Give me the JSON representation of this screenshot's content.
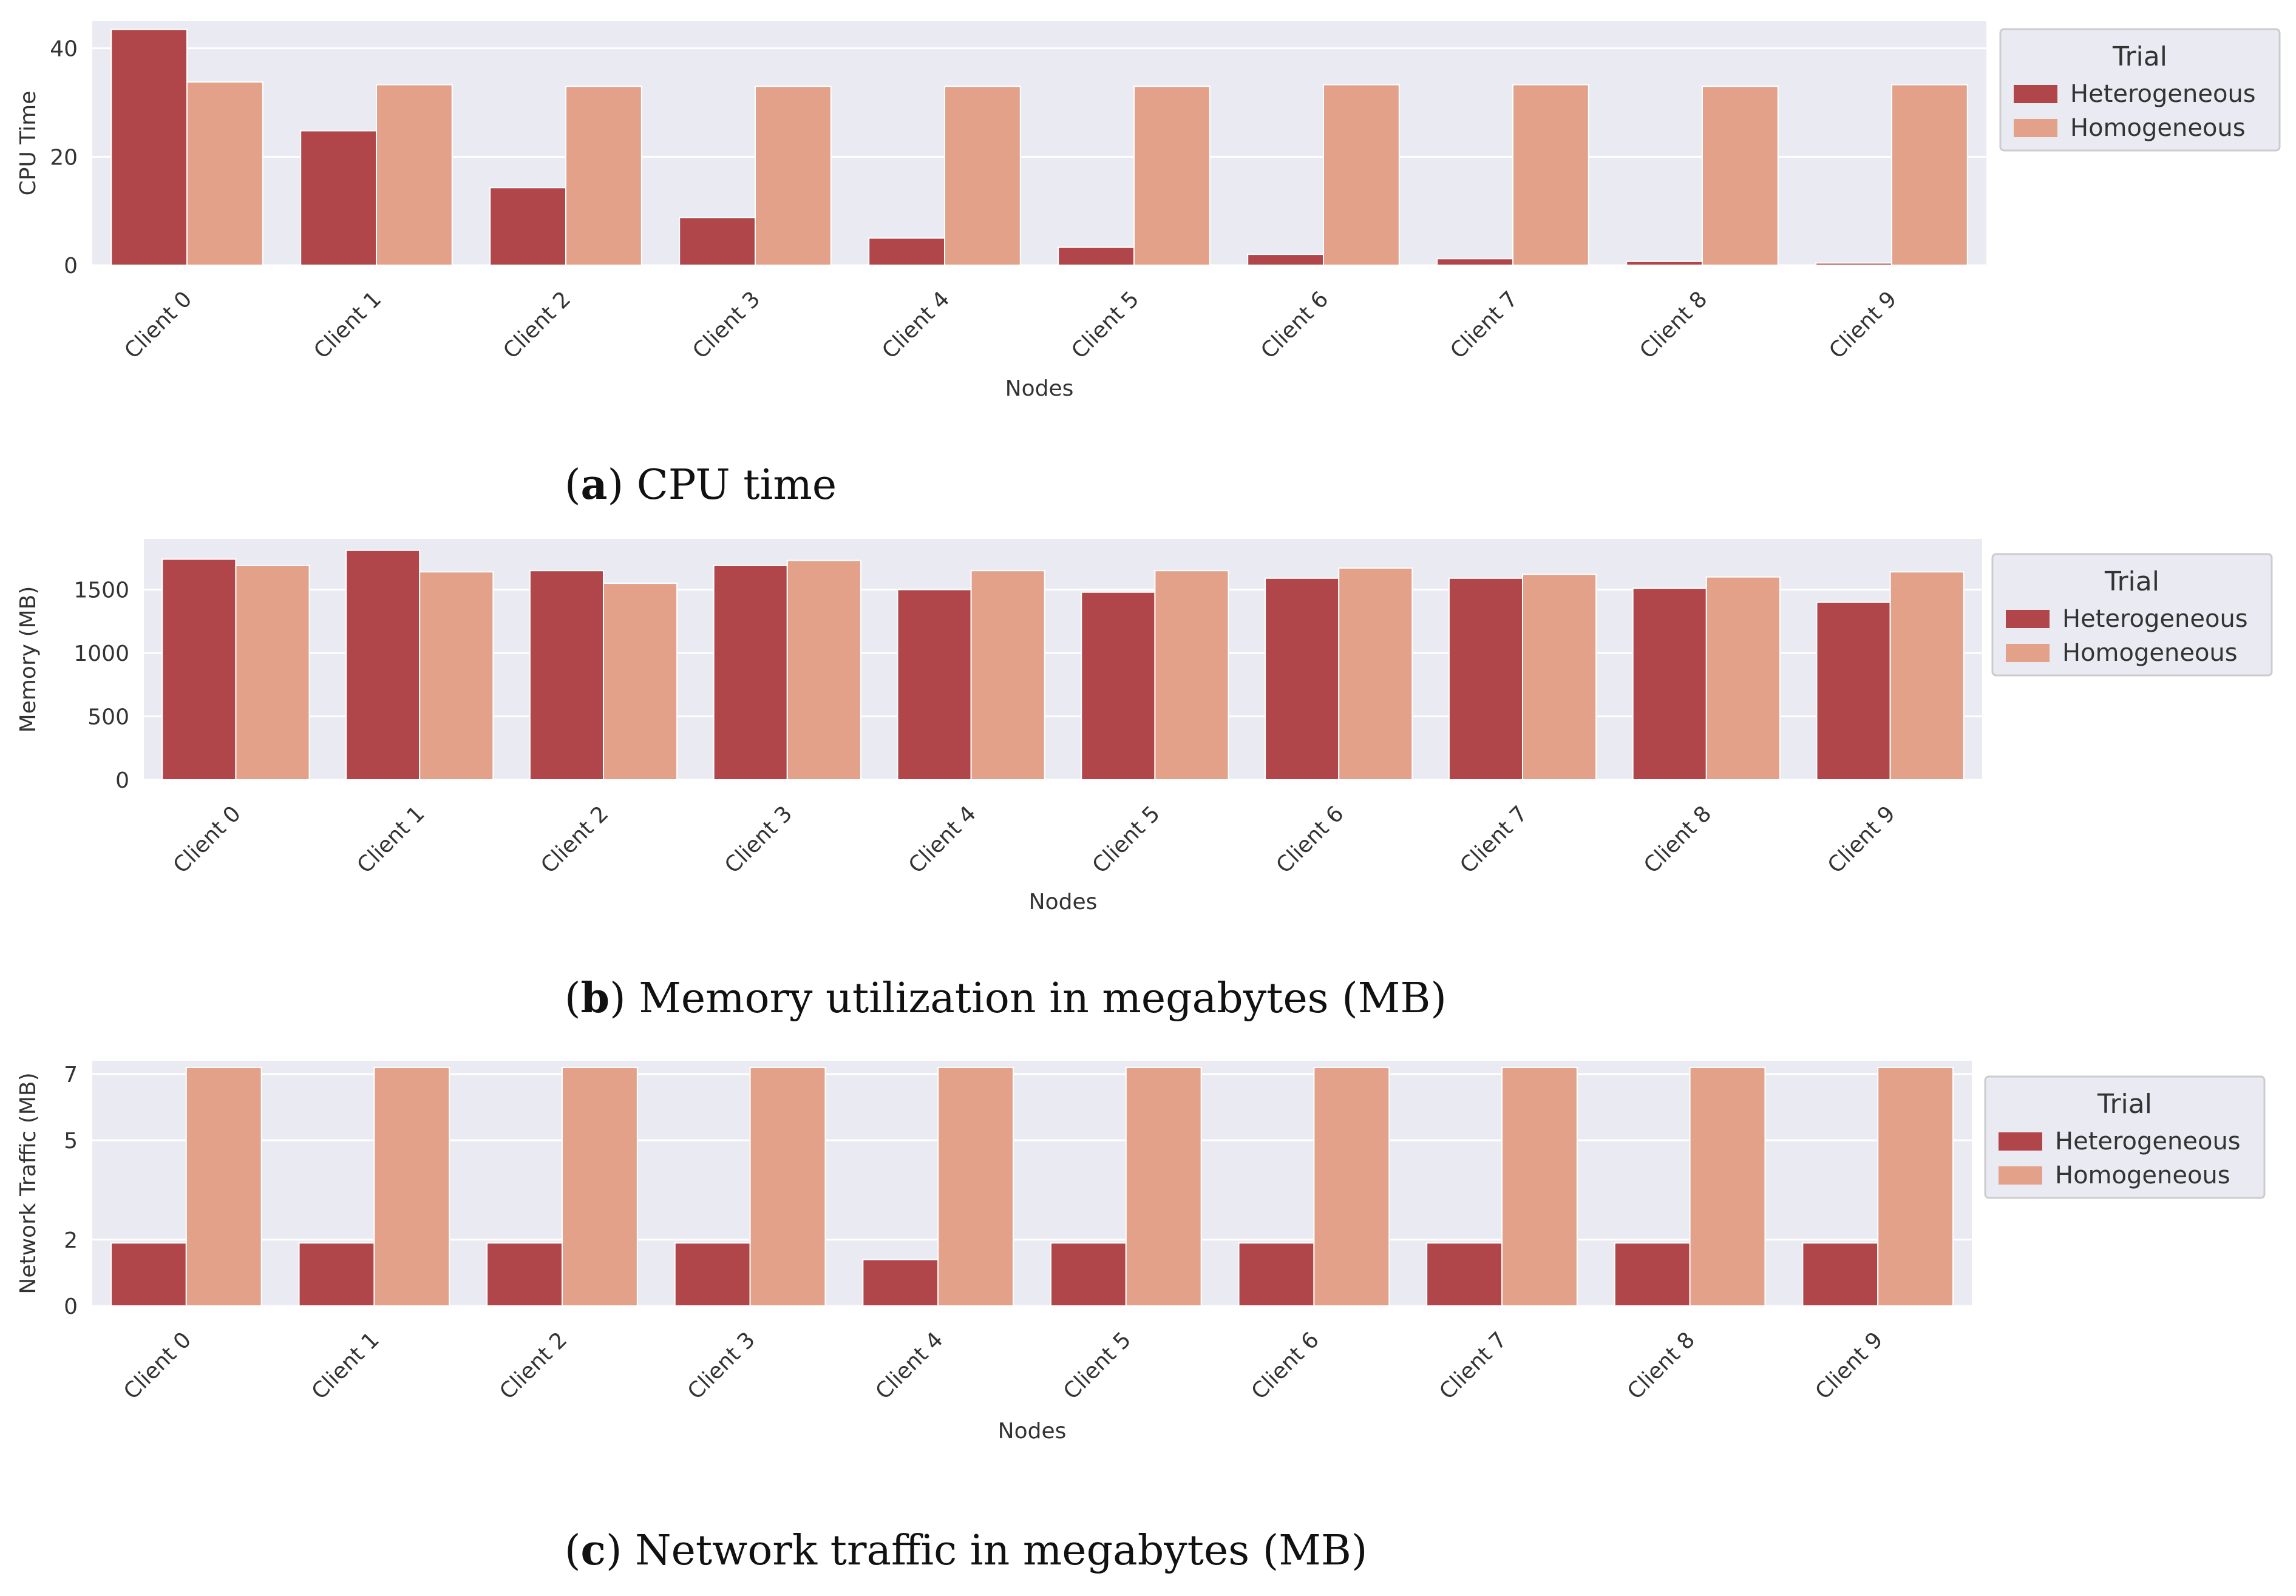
{
  "chart_data": [
    {
      "type": "bar",
      "caption_letter": "a",
      "caption_text": "CPU time",
      "xlabel": "Nodes",
      "ylabel": "CPU Time",
      "ylim": [
        0,
        45
      ],
      "yticks": [
        0,
        20,
        40
      ],
      "ytick_labels": [
        "0",
        "20",
        "40"
      ],
      "categories": [
        "Client 0",
        "Client 1",
        "Client 2",
        "Client 3",
        "Client 4",
        "Client 5",
        "Client 6",
        "Client 7",
        "Client 8",
        "Client 9"
      ],
      "legend": {
        "title": "Trial",
        "placement": "outside-right-top"
      },
      "series": [
        {
          "name": "Heterogeneous",
          "color": "#b0454a",
          "values": [
            43.5,
            24.8,
            14.3,
            8.8,
            5.0,
            3.3,
            2.0,
            1.2,
            0.7,
            0.4
          ]
        },
        {
          "name": "Homogeneous",
          "color": "#e2a188",
          "values": [
            33.8,
            33.3,
            33.0,
            33.0,
            33.0,
            33.0,
            33.3,
            33.3,
            33.0,
            33.3
          ]
        }
      ]
    },
    {
      "type": "bar",
      "caption_letter": "b",
      "caption_text": "Memory utilization in megabytes (MB)",
      "xlabel": "Nodes",
      "ylabel": "Memory (MB)",
      "ylim": [
        0,
        1900
      ],
      "yticks": [
        0,
        500,
        1000,
        1500
      ],
      "ytick_labels": [
        "0",
        "500",
        "1000",
        "1500"
      ],
      "categories": [
        "Client 0",
        "Client 1",
        "Client 2",
        "Client 3",
        "Client 4",
        "Client 5",
        "Client 6",
        "Client 7",
        "Client 8",
        "Client 9"
      ],
      "legend": {
        "title": "Trial",
        "placement": "outside-right-top"
      },
      "series": [
        {
          "name": "Heterogeneous",
          "color": "#b0454a",
          "values": [
            1740,
            1810,
            1650,
            1690,
            1500,
            1480,
            1590,
            1590,
            1510,
            1400
          ]
        },
        {
          "name": "Homogeneous",
          "color": "#e2a188",
          "values": [
            1690,
            1640,
            1550,
            1730,
            1650,
            1650,
            1670,
            1620,
            1600,
            1640
          ]
        }
      ]
    },
    {
      "type": "bar",
      "caption_letter": "c",
      "caption_text": "Network traffic in megabytes (MB)",
      "xlabel": "Nodes",
      "ylabel": "Network Traffic (MB)",
      "ylim": [
        0,
        7.4
      ],
      "yticks": [
        0,
        2,
        5,
        7
      ],
      "ytick_labels": [
        "0",
        "2",
        "5",
        "7"
      ],
      "categories": [
        "Client 0",
        "Client 1",
        "Client 2",
        "Client 3",
        "Client 4",
        "Client 5",
        "Client 6",
        "Client 7",
        "Client 8",
        "Client 9"
      ],
      "legend": {
        "title": "Trial",
        "placement": "outside-right-top"
      },
      "series": [
        {
          "name": "Heterogeneous",
          "color": "#b0454a",
          "values": [
            1.9,
            1.9,
            1.9,
            1.9,
            1.4,
            1.9,
            1.9,
            1.9,
            1.9,
            1.9
          ]
        },
        {
          "name": "Homogeneous",
          "color": "#e2a188",
          "values": [
            7.2,
            7.2,
            7.2,
            7.2,
            7.2,
            7.2,
            7.2,
            7.2,
            7.2,
            7.2
          ]
        }
      ]
    }
  ]
}
